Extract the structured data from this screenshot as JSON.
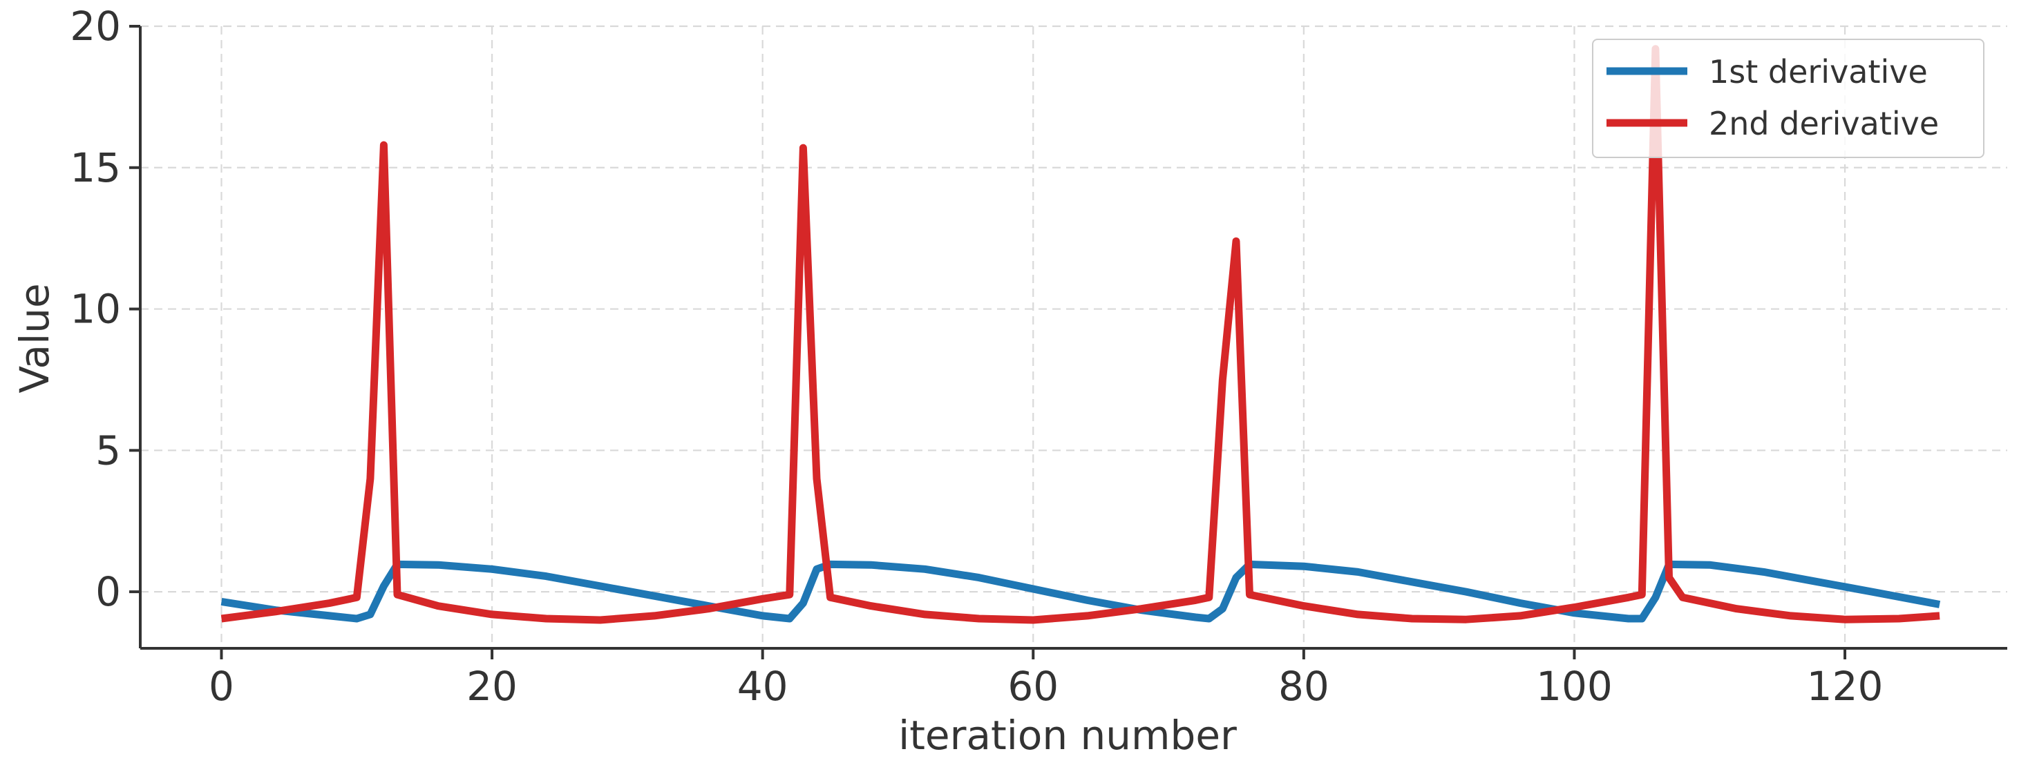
{
  "colors": {
    "series_1": "#1f77b4",
    "series_2": "#d62728",
    "axis": "#333333",
    "grid": "#d9d9d9"
  },
  "chart_data": {
    "type": "line",
    "title": "",
    "xlabel": "iteration number",
    "ylabel": "Value",
    "xlim": [
      -6,
      132
    ],
    "ylim": [
      -2,
      20
    ],
    "x_ticks": [
      0,
      20,
      40,
      60,
      80,
      100,
      120
    ],
    "y_ticks": [
      0,
      5,
      10,
      15,
      20
    ],
    "x_tick_labels": [
      "0",
      "20",
      "40",
      "60",
      "80",
      "100",
      "120"
    ],
    "y_tick_labels": [
      "0",
      "5",
      "10",
      "15",
      "20"
    ],
    "grid": true,
    "grid_style": "dashed",
    "legend_position": "top-right",
    "series": [
      {
        "name": "1st derivative",
        "color": "#1f77b4",
        "points": [
          [
            0,
            -0.35
          ],
          [
            4,
            -0.65
          ],
          [
            8,
            -0.85
          ],
          [
            10,
            -0.95
          ],
          [
            11,
            -0.8
          ],
          [
            12,
            0.2
          ],
          [
            13,
            0.97
          ],
          [
            16,
            0.95
          ],
          [
            20,
            0.8
          ],
          [
            24,
            0.55
          ],
          [
            28,
            0.2
          ],
          [
            32,
            -0.15
          ],
          [
            36,
            -0.5
          ],
          [
            40,
            -0.85
          ],
          [
            42,
            -0.95
          ],
          [
            43,
            -0.4
          ],
          [
            44,
            0.8
          ],
          [
            45,
            0.97
          ],
          [
            48,
            0.95
          ],
          [
            52,
            0.8
          ],
          [
            56,
            0.5
          ],
          [
            60,
            0.1
          ],
          [
            64,
            -0.3
          ],
          [
            68,
            -0.65
          ],
          [
            72,
            -0.9
          ],
          [
            73,
            -0.95
          ],
          [
            74,
            -0.6
          ],
          [
            75,
            0.5
          ],
          [
            76,
            0.97
          ],
          [
            80,
            0.9
          ],
          [
            84,
            0.7
          ],
          [
            88,
            0.35
          ],
          [
            92,
            0.0
          ],
          [
            96,
            -0.4
          ],
          [
            100,
            -0.75
          ],
          [
            104,
            -0.95
          ],
          [
            105,
            -0.95
          ],
          [
            106,
            -0.2
          ],
          [
            107,
            0.97
          ],
          [
            110,
            0.95
          ],
          [
            114,
            0.7
          ],
          [
            118,
            0.35
          ],
          [
            122,
            0.0
          ],
          [
            127,
            -0.45
          ]
        ]
      },
      {
        "name": "2nd derivative",
        "color": "#d62728",
        "points": [
          [
            0,
            -0.95
          ],
          [
            4,
            -0.7
          ],
          [
            8,
            -0.4
          ],
          [
            10,
            -0.2
          ],
          [
            11,
            4.0
          ],
          [
            12,
            15.8
          ],
          [
            13,
            -0.1
          ],
          [
            16,
            -0.5
          ],
          [
            20,
            -0.8
          ],
          [
            24,
            -0.95
          ],
          [
            28,
            -1.0
          ],
          [
            32,
            -0.85
          ],
          [
            36,
            -0.6
          ],
          [
            40,
            -0.25
          ],
          [
            42,
            -0.1
          ],
          [
            43,
            15.7
          ],
          [
            44,
            4.0
          ],
          [
            45,
            -0.2
          ],
          [
            48,
            -0.5
          ],
          [
            52,
            -0.8
          ],
          [
            56,
            -0.95
          ],
          [
            60,
            -1.0
          ],
          [
            64,
            -0.85
          ],
          [
            68,
            -0.6
          ],
          [
            72,
            -0.3
          ],
          [
            73,
            -0.2
          ],
          [
            74,
            7.5
          ],
          [
            75,
            12.4
          ],
          [
            76,
            -0.1
          ],
          [
            80,
            -0.5
          ],
          [
            84,
            -0.8
          ],
          [
            88,
            -0.95
          ],
          [
            92,
            -0.98
          ],
          [
            96,
            -0.85
          ],
          [
            100,
            -0.55
          ],
          [
            104,
            -0.2
          ],
          [
            105,
            -0.1
          ],
          [
            106,
            19.2
          ],
          [
            107,
            0.5
          ],
          [
            108,
            -0.2
          ],
          [
            112,
            -0.6
          ],
          [
            116,
            -0.85
          ],
          [
            120,
            -0.98
          ],
          [
            124,
            -0.95
          ],
          [
            127,
            -0.85
          ]
        ]
      }
    ]
  }
}
